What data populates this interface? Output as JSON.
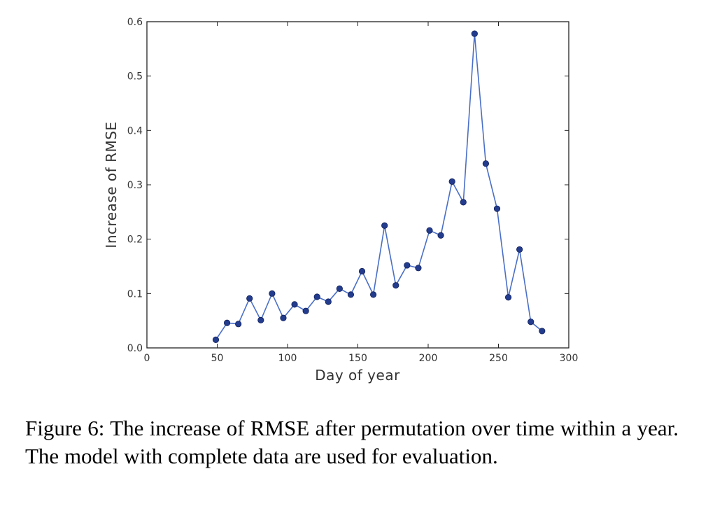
{
  "chart_data": {
    "type": "line",
    "title": "",
    "xlabel": "Day of year",
    "ylabel": "Increase of RMSE",
    "xlim": [
      0,
      300
    ],
    "ylim": [
      0,
      0.6
    ],
    "x_ticks": [
      "0",
      "50",
      "100",
      "150",
      "200",
      "250",
      "300"
    ],
    "y_ticks": [
      "0.0",
      "0.1",
      "0.2",
      "0.3",
      "0.4",
      "0.5",
      "0.6"
    ],
    "grid": false,
    "line_color": "#4a6fc7",
    "marker_color": "#233c8e",
    "series": [
      {
        "x": [
          49,
          57,
          65,
          73,
          81,
          89,
          97,
          105,
          113,
          121,
          129,
          137,
          145,
          153,
          161,
          169,
          177,
          185,
          193,
          201,
          209,
          217,
          225,
          233,
          241,
          249,
          257,
          265,
          273,
          281
        ],
        "y": [
          0.015,
          0.046,
          0.044,
          0.091,
          0.051,
          0.1,
          0.055,
          0.08,
          0.068,
          0.094,
          0.085,
          0.109,
          0.098,
          0.141,
          0.098,
          0.225,
          0.115,
          0.152,
          0.147,
          0.216,
          0.207,
          0.306,
          0.268,
          0.578,
          0.339,
          0.256,
          0.093,
          0.181,
          0.048,
          0.031
        ]
      }
    ]
  },
  "caption": {
    "text": "Figure 6: The increase of RMSE after permutation over time within a year. The model with complete data are used for evaluation."
  }
}
